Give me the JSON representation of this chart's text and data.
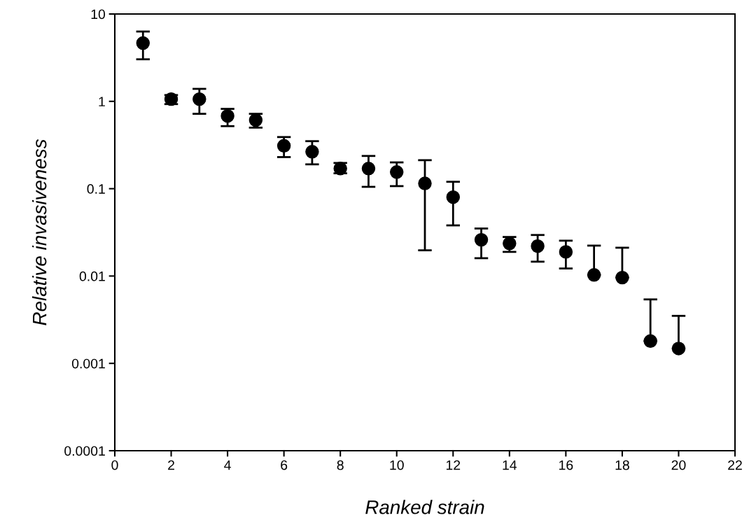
{
  "chart_data": {
    "type": "scatter",
    "xlabel": "Ranked strain",
    "ylabel": "Relative invasiveness",
    "x": [
      1,
      2,
      3,
      4,
      5,
      6,
      7,
      8,
      9,
      10,
      11,
      12,
      13,
      14,
      15,
      16,
      17,
      18,
      19,
      20
    ],
    "values": [
      4.65,
      1.06,
      1.06,
      0.68,
      0.61,
      0.31,
      0.265,
      0.17,
      0.17,
      0.155,
      0.115,
      0.08,
      0.026,
      0.0236,
      0.022,
      0.0189,
      0.0103,
      0.0096,
      0.0018,
      0.00148
    ],
    "errors": [
      [
        3.03,
        6.3
      ],
      [
        0.93,
        1.18
      ],
      [
        0.72,
        1.39
      ],
      [
        0.52,
        0.82
      ],
      [
        0.5,
        0.72
      ],
      [
        0.23,
        0.39
      ],
      [
        0.19,
        0.35
      ],
      [
        0.15,
        0.197
      ],
      [
        0.105,
        0.237
      ],
      [
        0.107,
        0.2
      ],
      [
        0.0197,
        0.212
      ],
      [
        0.038,
        0.12
      ],
      [
        0.016,
        0.035
      ],
      [
        0.0189,
        0.028
      ],
      [
        0.0146,
        0.0295
      ],
      [
        0.0122,
        0.0254
      ],
      [
        0.0103,
        0.0223
      ],
      [
        0.0096,
        0.0211
      ],
      [
        0.0018,
        0.0054
      ],
      [
        0.00148,
        0.0035
      ]
    ],
    "color": "#000000",
    "marker": "circle",
    "log": "y",
    "grid": false,
    "legend": false,
    "xlim": [
      0,
      22
    ],
    "xticks": [
      0,
      2,
      4,
      6,
      8,
      10,
      12,
      14,
      16,
      18,
      20,
      22
    ],
    "ylim": [
      0.0001,
      10
    ],
    "yticks": [
      {
        "value": 0.0001,
        "label": "0.0001"
      },
      {
        "value": 0.001,
        "label": "0.001"
      },
      {
        "value": 0.01,
        "label": "0.01"
      },
      {
        "value": 0.1,
        "label": "0.1"
      },
      {
        "value": 1,
        "label": "1"
      },
      {
        "value": 10,
        "label": "10"
      }
    ]
  }
}
